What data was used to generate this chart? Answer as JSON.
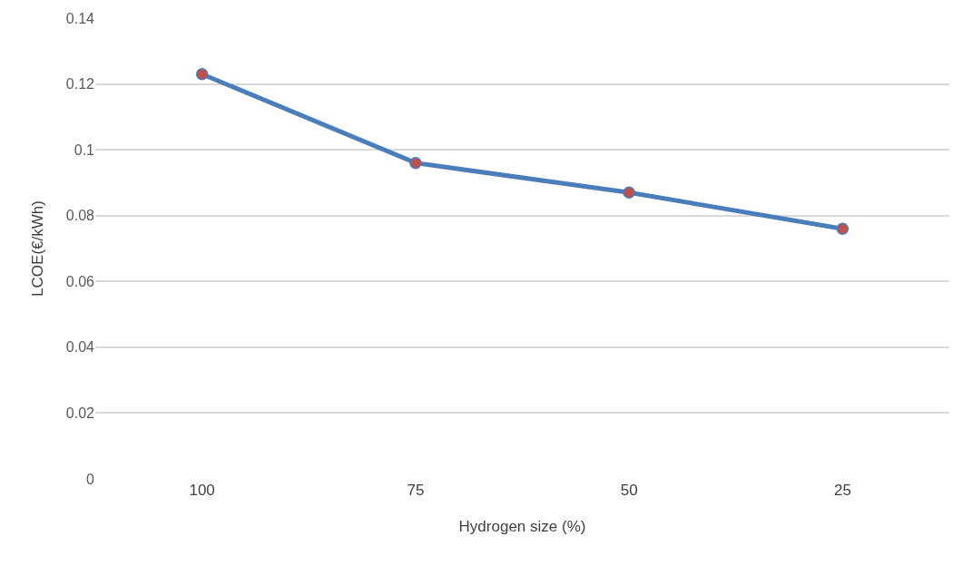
{
  "chart_data": {
    "type": "line",
    "xlabel": "Hydrogen size (%)",
    "ylabel": "LCOE(€/kWh)",
    "categories": [
      "100",
      "75",
      "50",
      "25"
    ],
    "series": [
      {
        "color": "#4a7ebb",
        "colors": [
          "#c0504d",
          "#c0504d",
          "#c0504d",
          "#c0504d"
        ],
        "values": [
          0.123,
          0.096,
          0.087,
          0.076
        ]
      }
    ],
    "ylim": [
      0,
      0.14
    ],
    "yticks": [
      0,
      0.02,
      0.04,
      0.06,
      0.08,
      0.1,
      0.12,
      0.14
    ],
    "grid": "y",
    "marker": "circle",
    "line_style": "solid"
  }
}
